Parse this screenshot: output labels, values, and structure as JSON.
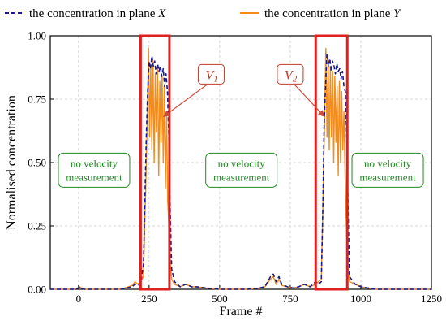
{
  "chart_data": {
    "type": "line",
    "xlabel": "Frame #",
    "ylabel": "Normalised concentration",
    "xlim": [
      -100,
      1250
    ],
    "ylim": [
      0,
      1.0
    ],
    "xticks": [
      0,
      250,
      500,
      750,
      1000,
      1250
    ],
    "yticks": [
      "0.00",
      "0.25",
      "0.50",
      "0.75",
      "1.00"
    ],
    "grid": true,
    "legend_position": "top",
    "series": [
      {
        "name_prefix": "the concentration in plane ",
        "name_var": "X",
        "style": "dashed",
        "color": "#1a1a8c",
        "x": [
          -100,
          -20,
          0,
          5,
          10,
          20,
          40,
          60,
          100,
          150,
          190,
          200,
          210,
          220,
          230,
          240,
          245,
          250,
          255,
          260,
          265,
          270,
          275,
          280,
          285,
          290,
          295,
          300,
          305,
          310,
          315,
          320,
          325,
          330,
          340,
          350,
          360,
          380,
          400,
          420,
          450,
          500,
          550,
          600,
          640,
          660,
          680,
          690,
          700,
          710,
          720,
          740,
          760,
          780,
          800,
          820,
          840,
          850,
          860,
          865,
          870,
          875,
          880,
          885,
          890,
          895,
          900,
          905,
          910,
          915,
          920,
          925,
          930,
          935,
          940,
          945,
          950,
          955,
          960,
          980,
          1000,
          1050,
          1100,
          1250
        ],
        "y": [
          0,
          0,
          0.005,
          0.01,
          0.005,
          0,
          0,
          0,
          0,
          0,
          0.01,
          0.02,
          0.015,
          0.02,
          0.1,
          0.6,
          0.78,
          0.9,
          0.87,
          0.92,
          0.88,
          0.9,
          0.85,
          0.89,
          0.86,
          0.88,
          0.84,
          0.87,
          0.8,
          0.85,
          0.78,
          0.6,
          0.3,
          0.08,
          0.03,
          0.02,
          0.01,
          0.02,
          0.01,
          0.01,
          0.005,
          0,
          0,
          0,
          0.005,
          0.01,
          0.05,
          0.06,
          0.03,
          0.05,
          0.02,
          0.01,
          0.005,
          0.01,
          0.02,
          0.01,
          0.03,
          0.02,
          0.03,
          0.3,
          0.65,
          0.8,
          0.93,
          0.88,
          0.91,
          0.86,
          0.9,
          0.88,
          0.85,
          0.89,
          0.86,
          0.87,
          0.83,
          0.86,
          0.8,
          0.78,
          0.6,
          0.3,
          0.05,
          0.02,
          0.01,
          0,
          0,
          0
        ]
      },
      {
        "name_prefix": "the concentration in plane ",
        "name_var": "Y",
        "style": "solid",
        "color": "#f28c1c",
        "x": [
          -100,
          -20,
          0,
          5,
          10,
          20,
          40,
          60,
          100,
          150,
          190,
          200,
          210,
          220,
          230,
          238,
          244,
          248,
          252,
          256,
          260,
          264,
          268,
          272,
          276,
          280,
          284,
          288,
          292,
          296,
          300,
          304,
          308,
          312,
          316,
          320,
          325,
          330,
          340,
          350,
          360,
          380,
          400,
          420,
          450,
          500,
          550,
          600,
          640,
          660,
          680,
          690,
          700,
          710,
          720,
          740,
          760,
          780,
          800,
          820,
          840,
          850,
          860,
          866,
          872,
          876,
          880,
          884,
          888,
          892,
          896,
          900,
          904,
          908,
          912,
          916,
          920,
          924,
          928,
          932,
          936,
          940,
          945,
          950,
          955,
          960,
          980,
          1000,
          1050,
          1100,
          1250
        ],
        "y": [
          0,
          0,
          0.005,
          0.01,
          0.005,
          0,
          0,
          0,
          0,
          0,
          0.015,
          0.03,
          0.02,
          0.03,
          0.05,
          0.4,
          0.7,
          0.95,
          0.6,
          0.88,
          0.55,
          0.9,
          0.5,
          0.85,
          0.62,
          0.87,
          0.45,
          0.82,
          0.58,
          0.84,
          0.5,
          0.8,
          0.4,
          0.7,
          0.35,
          0.25,
          0.1,
          0.04,
          0.02,
          0.015,
          0.01,
          0.02,
          0.01,
          0.01,
          0.005,
          0,
          0,
          0,
          0.005,
          0.01,
          0.04,
          0.05,
          0.02,
          0.04,
          0.015,
          0.01,
          0.005,
          0.01,
          0.02,
          0.01,
          0.02,
          0.03,
          0.04,
          0.35,
          0.7,
          0.95,
          0.6,
          0.9,
          0.55,
          0.88,
          0.6,
          0.86,
          0.5,
          0.84,
          0.58,
          0.8,
          0.45,
          0.82,
          0.5,
          0.78,
          0.55,
          0.7,
          0.4,
          0.2,
          0.08,
          0.03,
          0.02,
          0.01,
          0,
          0,
          0
        ]
      }
    ],
    "highlight_boxes": [
      {
        "label_letter": "V",
        "label_sub": "1",
        "x_start": 220,
        "x_end": 322,
        "pointer_x": 300,
        "pointer_y": 0.68,
        "label_x": 470,
        "label_y": 0.845
      },
      {
        "label_letter": "V",
        "label_sub": "2",
        "x_start": 840,
        "x_end": 952,
        "pointer_x": 872,
        "pointer_y": 0.68,
        "label_x": 750,
        "label_y": 0.845
      }
    ],
    "annotations": [
      {
        "lines": [
          "no velocity",
          "measurement"
        ],
        "x": 55,
        "y": 0.47
      },
      {
        "lines": [
          "no velocity",
          "measurement"
        ],
        "x": 577,
        "y": 0.47
      },
      {
        "lines": [
          "no velocity",
          "measurement"
        ],
        "x": 1095,
        "y": 0.47
      }
    ],
    "colors": {
      "x_series": "#1a1a8c",
      "y_series": "#f28c1c",
      "highlight": "#e02020",
      "annotation_text": "#1f8a1f",
      "annotation_border": "#1f8a1f",
      "vlabel_border": "#c0392b"
    }
  }
}
